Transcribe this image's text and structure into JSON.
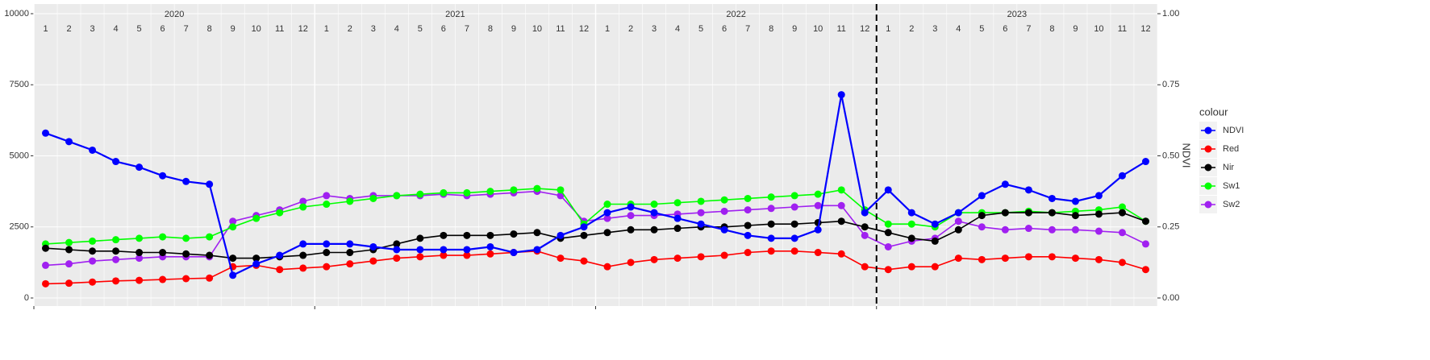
{
  "chart_data": {
    "type": "line",
    "year_labels": [
      "2020",
      "2021",
      "2022",
      "2023"
    ],
    "month_labels": [
      1,
      2,
      3,
      4,
      5,
      6,
      7,
      8,
      9,
      10,
      11,
      12
    ],
    "x": [
      "2020-01",
      "2020-02",
      "2020-03",
      "2020-04",
      "2020-05",
      "2020-06",
      "2020-07",
      "2020-08",
      "2020-09",
      "2020-10",
      "2020-11",
      "2020-12",
      "2021-01",
      "2021-02",
      "2021-03",
      "2021-04",
      "2021-05",
      "2021-06",
      "2021-07",
      "2021-08",
      "2021-09",
      "2021-10",
      "2021-11",
      "2021-12",
      "2022-01",
      "2022-02",
      "2022-03",
      "2022-04",
      "2022-05",
      "2022-06",
      "2022-07",
      "2022-08",
      "2022-09",
      "2022-10",
      "2022-11",
      "2022-12",
      "2023-01",
      "2023-02",
      "2023-03",
      "2023-04",
      "2023-05",
      "2023-06",
      "2023-07",
      "2023-08",
      "2023-09",
      "2023-10",
      "2023-11",
      "2023-12"
    ],
    "xticks": [
      "2020-01",
      "2021-01",
      "2022-01",
      "2023-01"
    ],
    "vline": "2023-01",
    "ylim": [
      0,
      10000
    ],
    "yticks": [
      0,
      2500,
      5000,
      7500,
      10000
    ],
    "y2label": "NDVI",
    "y2lim": [
      0,
      1
    ],
    "y2ticks": [
      {
        "value": 0,
        "label": "0.00"
      },
      {
        "value": 0.25,
        "label": "0.25"
      },
      {
        "value": 0.5,
        "label": "0.50"
      },
      {
        "value": 0.75,
        "label": "0.75"
      },
      {
        "value": 1,
        "label": "1.00"
      }
    ],
    "grid": true,
    "legend_title": "colour",
    "legend_position": "right",
    "series": [
      {
        "name": "NDVI",
        "color": "#0000ff",
        "axis": "y2",
        "values": [
          0.58,
          0.55,
          0.52,
          0.48,
          0.46,
          0.43,
          0.41,
          0.4,
          0.08,
          0.12,
          0.15,
          0.19,
          0.19,
          0.19,
          0.18,
          0.17,
          0.17,
          0.17,
          0.17,
          0.18,
          0.16,
          0.17,
          0.22,
          0.25,
          0.3,
          0.32,
          0.3,
          0.28,
          0.26,
          0.24,
          0.22,
          0.21,
          0.21,
          0.24,
          0.715,
          0.3,
          0.38,
          0.3,
          0.26,
          0.3,
          0.36,
          0.4,
          0.38,
          0.35,
          0.34,
          0.36,
          0.43,
          0.48
        ]
      },
      {
        "name": "Red",
        "color": "#ff0000",
        "values": [
          500,
          520,
          560,
          600,
          620,
          650,
          680,
          700,
          1100,
          1150,
          1000,
          1050,
          1100,
          1200,
          1300,
          1400,
          1450,
          1500,
          1500,
          1550,
          1600,
          1650,
          1400,
          1300,
          1100,
          1250,
          1350,
          1400,
          1450,
          1500,
          1600,
          1650,
          1650,
          1600,
          1550,
          1100,
          1000,
          1100,
          1100,
          1400,
          1350,
          1400,
          1450,
          1450,
          1400,
          1350,
          1250,
          1000
        ]
      },
      {
        "name": "Nir",
        "color": "#000000",
        "values": [
          1750,
          1700,
          1650,
          1650,
          1600,
          1600,
          1550,
          1500,
          1400,
          1400,
          1450,
          1500,
          1600,
          1600,
          1700,
          1900,
          2100,
          2200,
          2200,
          2200,
          2250,
          2300,
          2100,
          2200,
          2300,
          2400,
          2400,
          2450,
          2500,
          2500,
          2550,
          2600,
          2600,
          2650,
          2700,
          2500,
          2300,
          2100,
          2000,
          2400,
          2900,
          3000,
          3000,
          3000,
          2900,
          2950,
          3000,
          2700
        ]
      },
      {
        "name": "Sw1",
        "color": "#00ff00",
        "values": [
          1900,
          1950,
          2000,
          2050,
          2100,
          2150,
          2100,
          2150,
          2500,
          2800,
          3000,
          3200,
          3300,
          3400,
          3500,
          3600,
          3650,
          3700,
          3700,
          3750,
          3800,
          3850,
          3800,
          2600,
          3300,
          3300,
          3300,
          3350,
          3400,
          3450,
          3500,
          3550,
          3600,
          3650,
          3800,
          3100,
          2600,
          2600,
          2500,
          3000,
          3000,
          3000,
          3050,
          3000,
          3050,
          3100,
          3200,
          2700
        ]
      },
      {
        "name": "Sw2",
        "color": "#a020f0",
        "values": [
          1150,
          1200,
          1300,
          1350,
          1400,
          1450,
          1450,
          1450,
          2700,
          2900,
          3100,
          3400,
          3600,
          3500,
          3600,
          3600,
          3600,
          3650,
          3600,
          3650,
          3700,
          3750,
          3600,
          2700,
          2800,
          2900,
          2900,
          2950,
          3000,
          3050,
          3100,
          3150,
          3200,
          3250,
          3250,
          2200,
          1800,
          2000,
          2100,
          2700,
          2500,
          2400,
          2450,
          2400,
          2400,
          2350,
          2300,
          1900
        ]
      }
    ]
  }
}
